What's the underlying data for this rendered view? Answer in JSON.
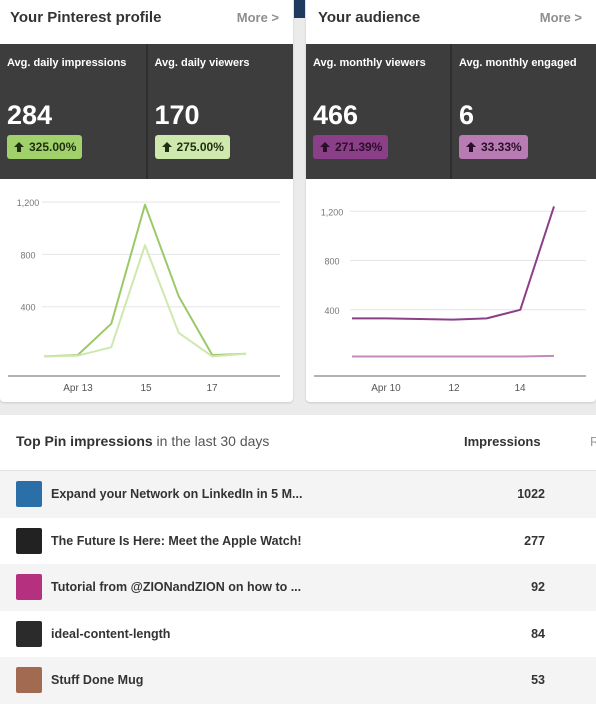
{
  "profile_card": {
    "title": "Your Pinterest profile",
    "more": "More >",
    "stats": [
      {
        "label": "Avg. daily impressions",
        "value": "284",
        "change": "325.00%"
      },
      {
        "label": "Avg. daily viewers",
        "value": "170",
        "change": "275.00%"
      }
    ]
  },
  "audience_card": {
    "title": "Your audience",
    "more": "More >",
    "stats": [
      {
        "label": "Avg. monthly viewers",
        "value": "466",
        "change": "271.39%"
      },
      {
        "label": "Avg. monthly engaged",
        "value": "6",
        "change": "33.33%"
      }
    ]
  },
  "colors": {
    "green_dark": "#9bc96a",
    "green_light": "#cfe8ae",
    "purple_dark": "#8c3f89",
    "purple_light": "#c08abd",
    "stat_bg": "#3d3d3d"
  },
  "chart_data": [
    {
      "type": "line",
      "ylim": [
        0,
        1300
      ],
      "yticks": [
        "1,200",
        "800",
        "400"
      ],
      "xticks": [
        "Apr 13",
        "15",
        "17"
      ],
      "series": [
        {
          "values": [
            20,
            30,
            270,
            1180,
            480,
            30,
            40
          ]
        },
        {
          "values": [
            20,
            25,
            90,
            870,
            200,
            20,
            40
          ]
        }
      ]
    },
    {
      "type": "line",
      "ylim": [
        0,
        1300
      ],
      "yticks": [
        "1,200",
        "800",
        "400"
      ],
      "xticks": [
        "Apr 10",
        "12",
        "14"
      ],
      "series": [
        {
          "values": [
            330,
            330,
            325,
            320,
            330,
            400,
            1240
          ]
        },
        {
          "values": [
            20,
            20,
            20,
            20,
            20,
            20,
            25
          ]
        }
      ]
    }
  ],
  "top_pins": {
    "title_bold": "Top Pin impressions",
    "title_rest": " in the last 30 days",
    "column": "Impressions",
    "column2": "R",
    "rows": [
      {
        "title": "Expand your Network on LinkedIn in 5 M...",
        "value": "1022",
        "thumb_icon": "linkedin-thumb-icon",
        "thumb_color": "#2a6fa8"
      },
      {
        "title": "The Future Is Here: Meet the Apple Watch!",
        "value": "277",
        "thumb_icon": "apple-watch-thumb-icon",
        "thumb_color": "#222222"
      },
      {
        "title": "Tutorial from @ZIONandZION on how to ...",
        "value": "92",
        "thumb_icon": "tutorial-thumb-icon",
        "thumb_color": "#b5307f"
      },
      {
        "title": "ideal-content-length",
        "value": "84",
        "thumb_icon": "content-length-thumb-icon",
        "thumb_color": "#2b2b2b"
      },
      {
        "title": "Stuff Done Mug",
        "value": "53",
        "thumb_icon": "mug-thumb-icon",
        "thumb_color": "#a36a52"
      }
    ]
  }
}
